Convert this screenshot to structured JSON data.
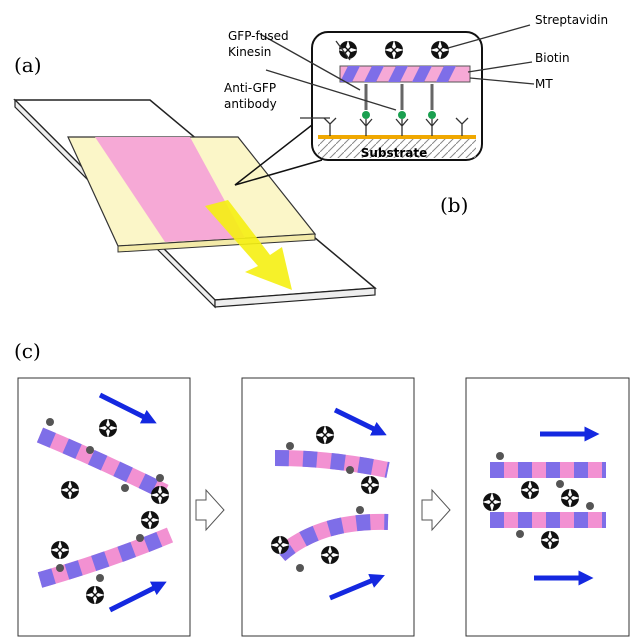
{
  "panel_labels": [
    "(a)",
    "(b)",
    "(c)"
  ],
  "callouts": {
    "gfp_kinesin": [
      "GFP-fused",
      "Kinesin"
    ],
    "anti_gfp": [
      "Anti-GFP",
      "antibody"
    ],
    "streptavidin": "Streptavidin",
    "biotin": "Biotin",
    "mt": "MT",
    "substrate": "Substrate"
  }
}
